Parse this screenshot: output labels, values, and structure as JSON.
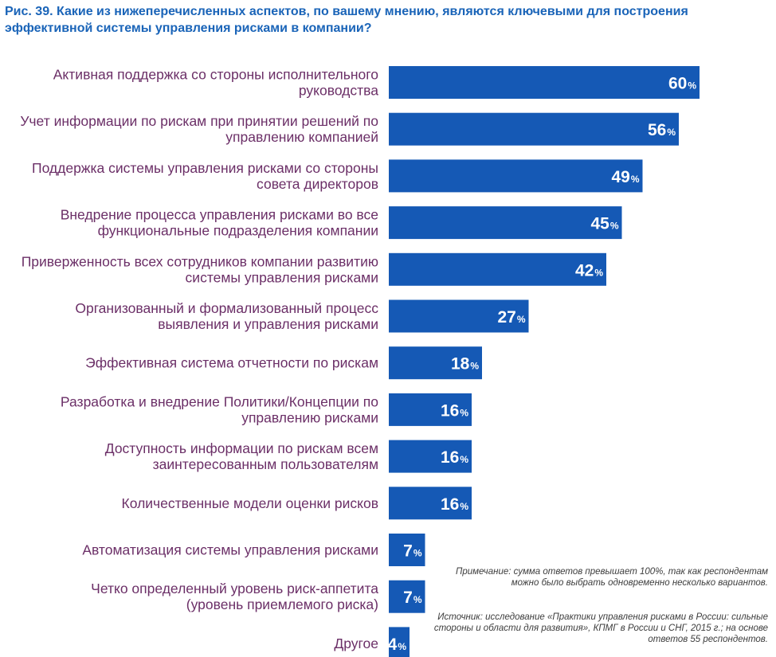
{
  "chart_data": {
    "type": "bar",
    "orientation": "horizontal",
    "title": "Рис. 39. Какие из нижеперечисленных аспектов, по вашему мнению, являются ключевыми для построения эффективной системы управления рисками в компании?",
    "categories": [
      [
        "Активная поддержка со стороны исполнительного",
        "руководства"
      ],
      [
        "Учет информации по рискам при принятии решений по",
        "управлению компанией"
      ],
      [
        "Поддержка системы управления рисками со стороны",
        "совета директоров"
      ],
      [
        "Внедрение процесса управления рисками во все",
        "функциональные подразделения компании"
      ],
      [
        "Приверженность всех сотрудников компании развитию",
        "системы управления рисками"
      ],
      [
        "Организованный и формализованный процесс",
        "выявления и управления рисками"
      ],
      [
        "Эффективная система отчетности по рискам"
      ],
      [
        "Разработка и внедрение Политики/Концепции по",
        "управлению рисками"
      ],
      [
        "Доступность информации по рискам всем",
        "заинтересованным пользователям"
      ],
      [
        "Количественные модели оценки рисков"
      ],
      [
        "Автоматизация системы управления рисками"
      ],
      [
        "Четко определенный уровень риск-аппетита",
        "(уровень приемлемого риска)"
      ],
      [
        "Другое"
      ]
    ],
    "values": [
      60,
      56,
      49,
      45,
      42,
      27,
      18,
      16,
      16,
      16,
      7,
      7,
      4
    ],
    "unit": "%",
    "xlim": [
      0,
      60
    ],
    "bar_color": "#1559b5",
    "label_color": "#6b2f67",
    "title_color": "#1a64b8"
  },
  "notes": {
    "remark": "Примечание: сумма ответов превышает 100%, так как респондентам можно было выбрать одновременно несколько вариантов.",
    "source": "Источник: исследование «Практики управления рисками в России: сильные стороны и области для развития», КПМГ в России и СНГ, 2015 г.; на основе ответов 55 респондентов."
  }
}
